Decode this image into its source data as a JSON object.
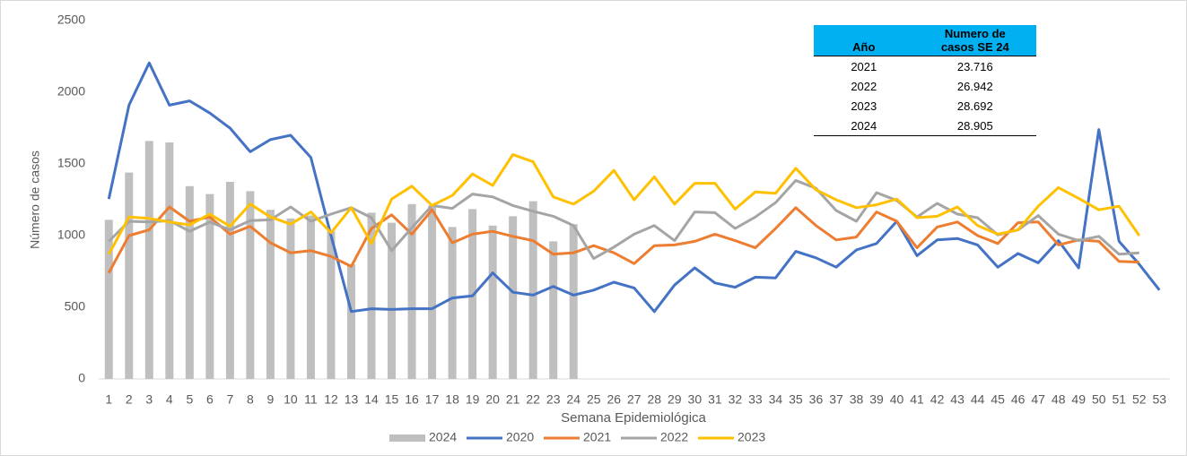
{
  "chart_data": {
    "type": "combo",
    "y_label": "Número de casos",
    "x_label": "Semana Epidemiológica",
    "categories": [
      "1",
      "2",
      "3",
      "4",
      "5",
      "6",
      "7",
      "8",
      "9",
      "10",
      "11",
      "12",
      "13",
      "14",
      "15",
      "16",
      "17",
      "18",
      "19",
      "20",
      "21",
      "22",
      "23",
      "24",
      "25",
      "26",
      "27",
      "28",
      "29",
      "30",
      "31",
      "32",
      "33",
      "34",
      "35",
      "36",
      "37",
      "38",
      "39",
      "40",
      "41",
      "42",
      "43",
      "44",
      "45",
      "46",
      "47",
      "48",
      "49",
      "50",
      "51",
      "52",
      "53"
    ],
    "ylim": [
      0,
      2500
    ],
    "yticks": [
      0,
      500,
      1000,
      1500,
      2000,
      2500
    ],
    "grid": false,
    "legend": "bottom",
    "series": [
      {
        "name": "2024",
        "type": "bar",
        "color": "#bfbfbf",
        "values": [
          1110,
          1440,
          1660,
          1650,
          1345,
          1290,
          1375,
          1310,
          1180,
          1120,
          1140,
          1030,
          800,
          1160,
          1090,
          1220,
          1210,
          1060,
          1185,
          1070,
          1135,
          1240,
          960,
          1080,
          null,
          null,
          null,
          null,
          null,
          null,
          null,
          null,
          null,
          null,
          null,
          null,
          null,
          null,
          null,
          null,
          null,
          null,
          null,
          null,
          null,
          null,
          null,
          null,
          null,
          null,
          null,
          null,
          null
        ]
      },
      {
        "name": "2020",
        "type": "line",
        "color": "#4472c4",
        "values": [
          1255,
          1910,
          2205,
          1910,
          1940,
          1855,
          1750,
          1585,
          1670,
          1700,
          1545,
          1000,
          470,
          490,
          485,
          490,
          490,
          565,
          580,
          740,
          605,
          585,
          645,
          585,
          620,
          675,
          635,
          470,
          655,
          775,
          670,
          640,
          710,
          705,
          890,
          845,
          780,
          900,
          945,
          1100,
          860,
          970,
          980,
          935,
          780,
          875,
          810,
          965,
          775,
          1740,
          960,
          800,
          620
        ]
      },
      {
        "name": "2021",
        "type": "line",
        "color": "#ed7d31",
        "values": [
          740,
          1000,
          1040,
          1200,
          1100,
          1130,
          1010,
          1065,
          950,
          880,
          895,
          855,
          785,
          1050,
          1145,
          1010,
          1180,
          950,
          1010,
          1030,
          995,
          965,
          870,
          880,
          930,
          880,
          805,
          930,
          935,
          960,
          1010,
          965,
          915,
          1050,
          1195,
          1070,
          970,
          990,
          1165,
          1100,
          915,
          1060,
          1095,
          1000,
          945,
          1090,
          1095,
          935,
          970,
          960,
          820,
          815,
          null
        ]
      },
      {
        "name": "2022",
        "type": "line",
        "color": "#a5a5a5",
        "values": [
          960,
          1100,
          1095,
          1105,
          1030,
          1095,
          1040,
          1105,
          1110,
          1200,
          1100,
          1150,
          1195,
          1125,
          895,
          1055,
          1210,
          1190,
          1290,
          1270,
          1210,
          1170,
          1135,
          1070,
          840,
          920,
          1010,
          1070,
          965,
          1165,
          1160,
          1050,
          1130,
          1230,
          1385,
          1330,
          1175,
          1100,
          1300,
          1245,
          1130,
          1225,
          1150,
          1125,
          1005,
          1040,
          1140,
          1010,
          965,
          995,
          870,
          880,
          null
        ]
      },
      {
        "name": "2023",
        "type": "line",
        "color": "#ffc000",
        "values": [
          870,
          1130,
          1120,
          1095,
          1075,
          1150,
          1065,
          1220,
          1130,
          1080,
          1165,
          1020,
          1195,
          945,
          1255,
          1345,
          1210,
          1280,
          1430,
          1350,
          1565,
          1515,
          1270,
          1220,
          1310,
          1455,
          1250,
          1410,
          1220,
          1365,
          1365,
          1185,
          1305,
          1295,
          1470,
          1320,
          1250,
          1195,
          1215,
          1255,
          1125,
          1135,
          1200,
          1070,
          1010,
          1040,
          1205,
          1335,
          1260,
          1180,
          1205,
          1000,
          null
        ]
      }
    ]
  },
  "table": {
    "header": [
      "Año",
      "Numero de casos SE 24"
    ],
    "rows": [
      [
        "2021",
        "23.716"
      ],
      [
        "2022",
        "26.942"
      ],
      [
        "2023",
        "28.692"
      ],
      [
        "2024",
        "28.905"
      ]
    ]
  }
}
